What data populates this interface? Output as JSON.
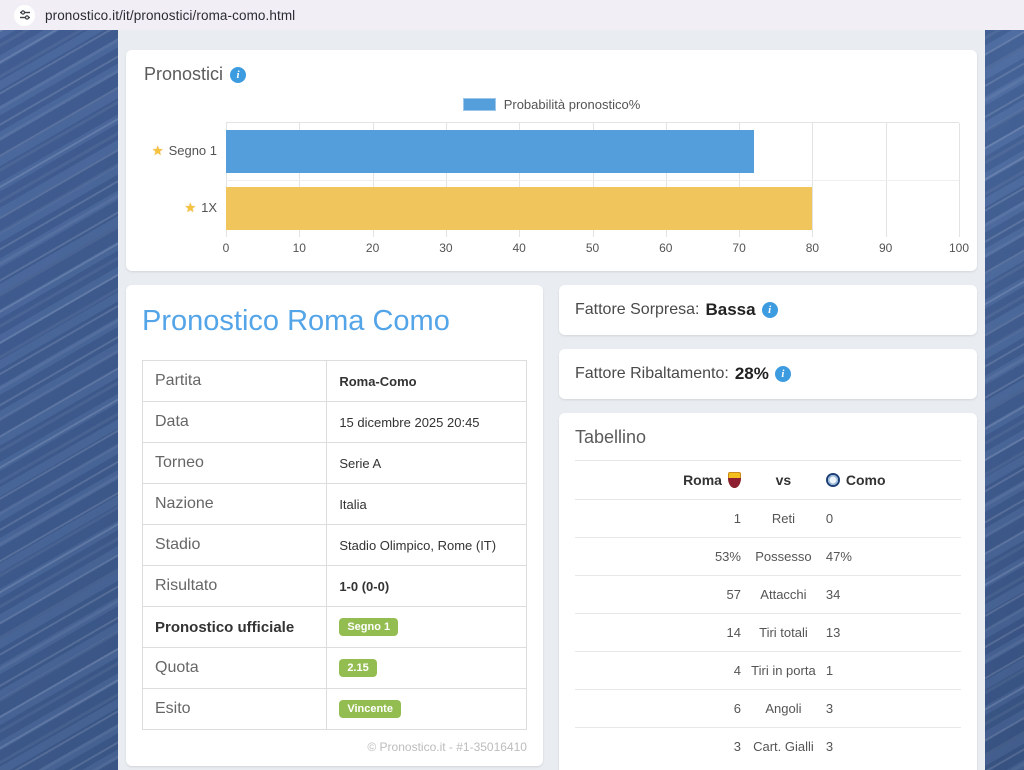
{
  "browser": {
    "url": "pronostico.it/it/pronostici/roma-como.html"
  },
  "icons": {
    "info_glyph": "i",
    "star_glyph": "★"
  },
  "colors": {
    "accent_blue": "#549fdb",
    "accent_yellow": "#f0c65c",
    "badge_green": "#93bd51",
    "heading_blue": "#54a4e8",
    "info_blue": "#3d9be0",
    "background_blue": "#3b5787",
    "content_gray": "#e9edf1"
  },
  "chart_card": {
    "title": "Pronostici"
  },
  "chart_data": {
    "type": "bar",
    "orientation": "horizontal",
    "title": "Pronostici",
    "legend": "Probabilità pronostico%",
    "legend_position": "top-center",
    "categories": [
      "Segno 1",
      "1X"
    ],
    "values": [
      72,
      80
    ],
    "bar_colors": [
      "#549fdb",
      "#f0c65c"
    ],
    "category_prefix_icon": "star",
    "xlim": [
      0,
      100
    ],
    "xticks": [
      0,
      10,
      20,
      30,
      40,
      50,
      60,
      70,
      80,
      90,
      100
    ],
    "grid": true
  },
  "main": {
    "heading": "Pronostico Roma Como",
    "details": [
      {
        "label": "Partita",
        "value": "Roma-Como",
        "value_style": "bold"
      },
      {
        "label": "Data",
        "value": "15 dicembre 2025 20:45",
        "value_style": "text"
      },
      {
        "label": "Torneo",
        "value": "Serie A",
        "value_style": "text"
      },
      {
        "label": "Nazione",
        "value": "Italia",
        "value_style": "text"
      },
      {
        "label": "Stadio",
        "value": "Stadio Olimpico, Rome (IT)",
        "value_style": "text"
      },
      {
        "label": "Risultato",
        "value": "1-0 (0-0)",
        "value_style": "bold"
      },
      {
        "label": "Pronostico ufficiale",
        "label_style": "bold",
        "value": "Segno 1",
        "value_style": "badge"
      },
      {
        "label": "Quota",
        "value": "2.15",
        "value_style": "badge"
      },
      {
        "label": "Esito",
        "value": "Vincente",
        "value_style": "badge"
      }
    ],
    "footer": "© Pronostico.it - #1-35016410"
  },
  "sidebar": {
    "surprise": {
      "label": "Fattore Sorpresa:",
      "value": "Bassa"
    },
    "comeback": {
      "label": "Fattore Ribaltamento:",
      "value": "28%"
    },
    "tabellino": {
      "title": "Tabellino",
      "home_team": "Roma",
      "away_team": "Como",
      "vs": "vs",
      "rows": [
        {
          "home": "1",
          "stat": "Reti",
          "away": "0"
        },
        {
          "home": "53%",
          "stat": "Possesso",
          "away": "47%"
        },
        {
          "home": "57",
          "stat": "Attacchi",
          "away": "34"
        },
        {
          "home": "14",
          "stat": "Tiri totali",
          "away": "13"
        },
        {
          "home": "4",
          "stat": "Tiri in porta",
          "away": "1"
        },
        {
          "home": "6",
          "stat": "Angoli",
          "away": "3"
        },
        {
          "home": "3",
          "stat": "Cart. Gialli",
          "away": "3"
        }
      ]
    }
  }
}
